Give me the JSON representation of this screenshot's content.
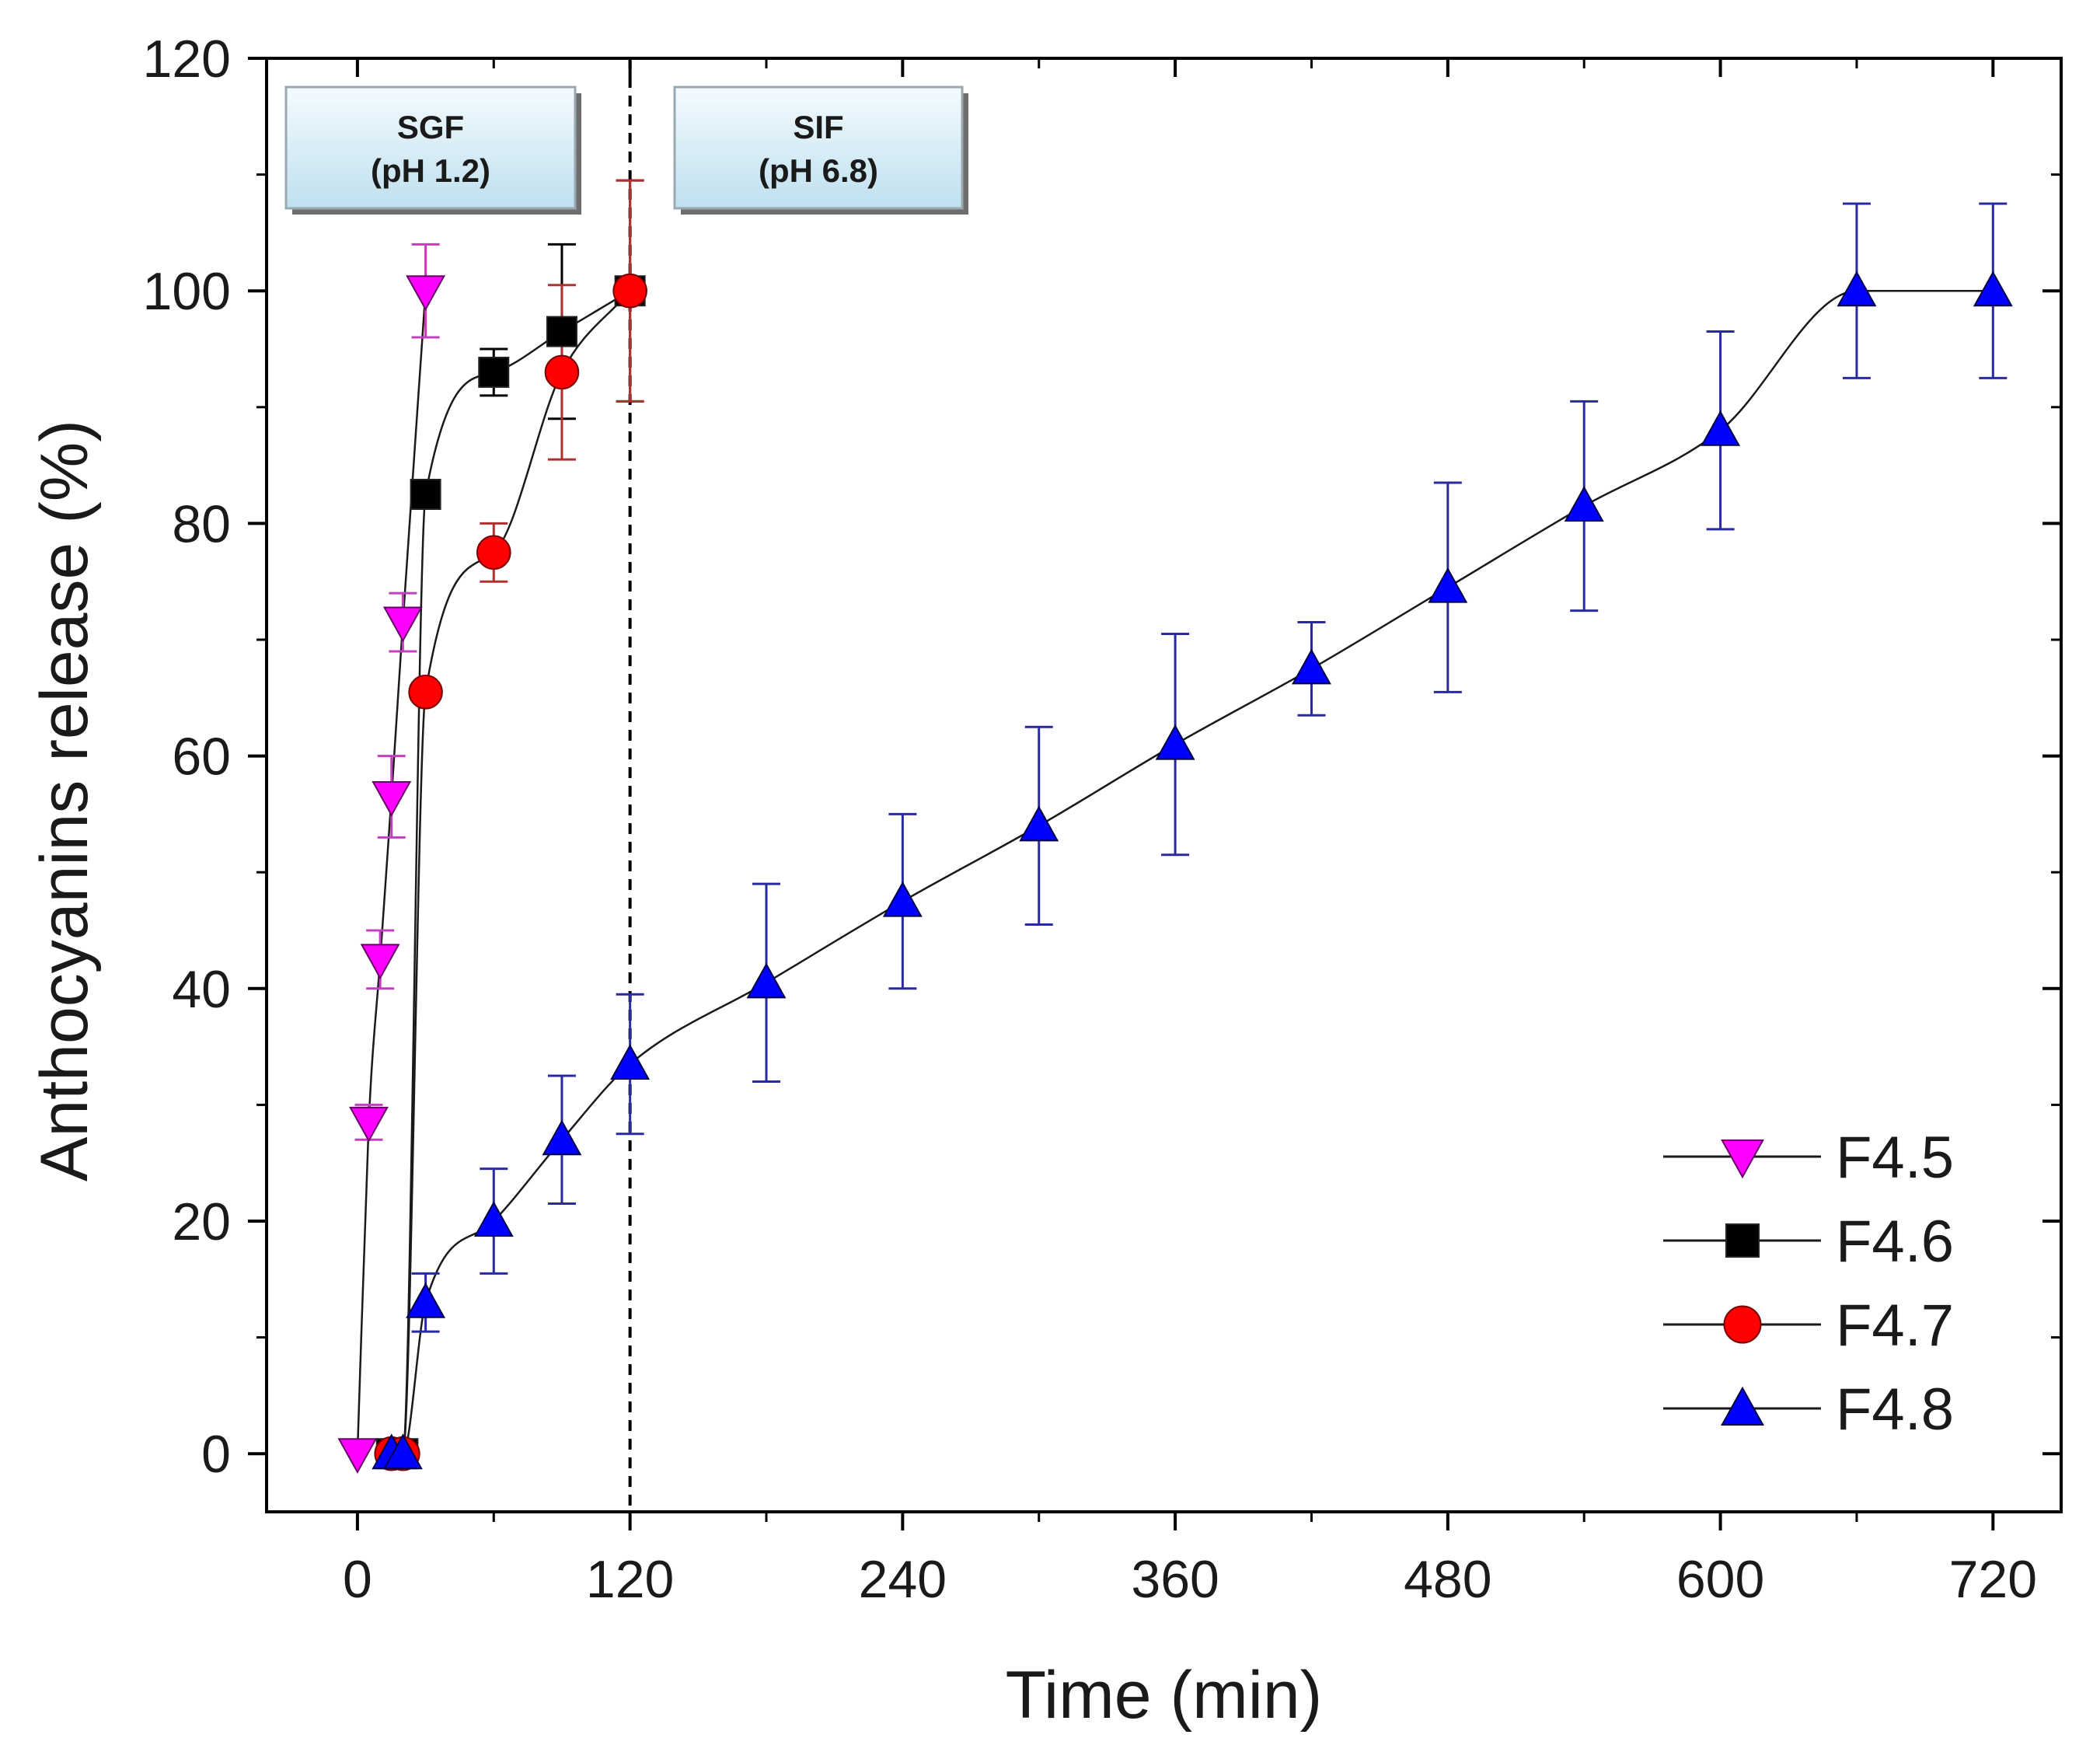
{
  "chart_data": {
    "type": "line",
    "title": "",
    "xlabel": "Time (min)",
    "ylabel": "Anthocyanins release (%)",
    "xlim": [
      -40,
      750
    ],
    "ylim": [
      -5,
      120
    ],
    "xticks": [
      "0",
      "120",
      "240",
      "360",
      "480",
      "600",
      "720"
    ],
    "yticks": [
      "0",
      "20",
      "40",
      "60",
      "80",
      "100",
      "120"
    ],
    "vline_x": 120,
    "phases": [
      {
        "label": "SGF",
        "sub": "(pH 1.2)"
      },
      {
        "label": "SIF",
        "sub": "(pH 6.8)"
      }
    ],
    "legend_position": "bottom-right",
    "series": [
      {
        "name": "F4.5",
        "marker": "triangle-down",
        "color": "#ff00ff",
        "err_color": "#c040c0",
        "x": [
          0,
          5,
          10,
          15,
          20,
          30
        ],
        "y": [
          0,
          28.5,
          42.5,
          56.5,
          71.5,
          100
        ],
        "err": [
          0.5,
          1.5,
          2.5,
          3.5,
          2.5,
          4
        ]
      },
      {
        "name": "F4.6",
        "marker": "square",
        "color": "#000000",
        "err_color": "#000000",
        "x": [
          15,
          20,
          30,
          60,
          90,
          120
        ],
        "y": [
          0,
          0,
          82.5,
          93,
          96.5,
          100
        ],
        "err": [
          0.3,
          0.3,
          0.5,
          2,
          7.5,
          9.5
        ]
      },
      {
        "name": "F4.7",
        "marker": "circle",
        "color": "#ff0000",
        "err_color": "#b03030",
        "x": [
          15,
          20,
          30,
          60,
          90,
          120
        ],
        "y": [
          0,
          0,
          65.5,
          77.5,
          93,
          100
        ],
        "err": [
          0.3,
          0.3,
          0.5,
          2.5,
          7.5,
          9.5
        ]
      },
      {
        "name": "F4.8",
        "marker": "triangle-up",
        "color": "#0000ff",
        "err_color": "#2a2aa0",
        "x": [
          15,
          20,
          30,
          60,
          90,
          120,
          180,
          240,
          300,
          360,
          420,
          480,
          540,
          600,
          660,
          720
        ],
        "y": [
          0,
          0,
          13,
          20,
          27,
          33.5,
          40.5,
          47.5,
          54,
          61,
          67.5,
          74.5,
          81.5,
          88,
          100,
          100
        ],
        "err": [
          0.3,
          0.3,
          2.5,
          4.5,
          5.5,
          6,
          8.5,
          7.5,
          8.5,
          9.5,
          4,
          9,
          9,
          8.5,
          7.5,
          7.5
        ]
      }
    ]
  }
}
